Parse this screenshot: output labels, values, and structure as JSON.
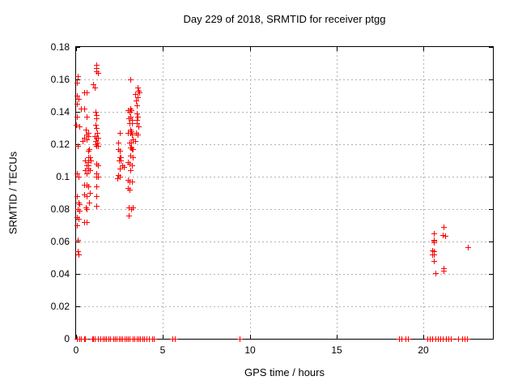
{
  "title": "Day 229 of 2018, SRMTID for receiver ptgg",
  "chart_data": {
    "type": "scatter",
    "title": "Day 229 of 2018, SRMTID for receiver ptgg",
    "xlabel": "GPS time / hours",
    "ylabel": "SRMTID / TECUs",
    "xlim": [
      0,
      24
    ],
    "ylim": [
      0,
      0.18
    ],
    "xticks": [
      0,
      5,
      10,
      15,
      20
    ],
    "xticklabels": [
      "0",
      "5",
      "10",
      "15",
      "20"
    ],
    "yticks": [
      0,
      0.02,
      0.04,
      0.06,
      0.08,
      0.1,
      0.12,
      0.14,
      0.16,
      0.18
    ],
    "yticklabels": [
      "0",
      "0.02",
      "0.04",
      "0.06",
      "0.08",
      "0.1",
      "0.12",
      "0.14",
      "0.16",
      "0.18"
    ],
    "grid": true,
    "legend_position": "none",
    "marker": "plus",
    "marker_color": "#ff0000",
    "grid_color": "#b3b3b3",
    "series": [
      {
        "name": "SRMTID",
        "points": [
          [
            0.03,
            0.132
          ],
          [
            0.08,
            0.158
          ],
          [
            0.08,
            0.15
          ],
          [
            0.08,
            0.145
          ],
          [
            0.08,
            0.137
          ],
          [
            0.11,
            0.162
          ],
          [
            0.15,
            0.148
          ],
          [
            0.19,
            0.131
          ],
          [
            0.29,
            0.142
          ],
          [
            0.39,
            0.122
          ],
          [
            0.11,
            0.119
          ],
          [
            0.08,
            0.102
          ],
          [
            0.14,
            0.1
          ],
          [
            0.14,
            0.084
          ],
          [
            0.23,
            0.083
          ],
          [
            0.11,
            0.08
          ],
          [
            0.19,
            0.079
          ],
          [
            0.08,
            0.088
          ],
          [
            0.08,
            0.075
          ],
          [
            0.17,
            0.074
          ],
          [
            0.08,
            0.07
          ],
          [
            0.11,
            0.061
          ],
          [
            0.11,
            0.054
          ],
          [
            0.17,
            0.052
          ],
          [
            0.5,
            0.152
          ],
          [
            0.62,
            0.152
          ],
          [
            0.5,
            0.142
          ],
          [
            0.65,
            0.137
          ],
          [
            0.58,
            0.129
          ],
          [
            0.7,
            0.127
          ],
          [
            0.61,
            0.126
          ],
          [
            0.73,
            0.125
          ],
          [
            0.5,
            0.124
          ],
          [
            0.61,
            0.123
          ],
          [
            0.78,
            0.117
          ],
          [
            0.7,
            0.116
          ],
          [
            0.73,
            0.112
          ],
          [
            0.81,
            0.112
          ],
          [
            0.73,
            0.11
          ],
          [
            0.84,
            0.11
          ],
          [
            0.55,
            0.11
          ],
          [
            0.7,
            0.109
          ],
          [
            0.61,
            0.107
          ],
          [
            0.73,
            0.107
          ],
          [
            0.73,
            0.105
          ],
          [
            0.81,
            0.104
          ],
          [
            0.55,
            0.104
          ],
          [
            0.7,
            0.104
          ],
          [
            0.65,
            0.102
          ],
          [
            0.5,
            0.095
          ],
          [
            0.61,
            0.095
          ],
          [
            0.73,
            0.094
          ],
          [
            0.5,
            0.089
          ],
          [
            0.61,
            0.088
          ],
          [
            0.81,
            0.09
          ],
          [
            0.57,
            0.081
          ],
          [
            0.65,
            0.08
          ],
          [
            0.78,
            0.084
          ],
          [
            0.5,
            0.072
          ],
          [
            0.65,
            0.072
          ],
          [
            1.18,
            0.169
          ],
          [
            1.2,
            0.167
          ],
          [
            1.17,
            0.165
          ],
          [
            1.27,
            0.164
          ],
          [
            1.01,
            0.157
          ],
          [
            1.09,
            0.155
          ],
          [
            1.12,
            0.14
          ],
          [
            1.2,
            0.138
          ],
          [
            1.17,
            0.136
          ],
          [
            1.12,
            0.132
          ],
          [
            1.17,
            0.13
          ],
          [
            1.24,
            0.127
          ],
          [
            1.09,
            0.125
          ],
          [
            1.2,
            0.124
          ],
          [
            1.27,
            0.124
          ],
          [
            1.16,
            0.122
          ],
          [
            1.24,
            0.121
          ],
          [
            1.16,
            0.12
          ],
          [
            1.27,
            0.119
          ],
          [
            1.17,
            0.119
          ],
          [
            1.2,
            0.108
          ],
          [
            1.27,
            0.107
          ],
          [
            1.2,
            0.102
          ],
          [
            1.17,
            0.1
          ],
          [
            1.27,
            0.1
          ],
          [
            1.2,
            0.094
          ],
          [
            1.2,
            0.088
          ],
          [
            1.2,
            0.082
          ],
          [
            2.44,
            0.121
          ],
          [
            2.52,
            0.127
          ],
          [
            2.44,
            0.117
          ],
          [
            2.56,
            0.116
          ],
          [
            2.52,
            0.112
          ],
          [
            2.6,
            0.112
          ],
          [
            2.49,
            0.11
          ],
          [
            2.6,
            0.11
          ],
          [
            2.68,
            0.107
          ],
          [
            2.76,
            0.106
          ],
          [
            2.52,
            0.105
          ],
          [
            2.44,
            0.101
          ],
          [
            2.52,
            0.1
          ],
          [
            2.4,
            0.099
          ],
          [
            3.13,
            0.16
          ],
          [
            3.55,
            0.155
          ],
          [
            3.61,
            0.153
          ],
          [
            3.66,
            0.152
          ],
          [
            3.43,
            0.151
          ],
          [
            3.57,
            0.149
          ],
          [
            3.47,
            0.147
          ],
          [
            3.5,
            0.144
          ],
          [
            3.13,
            0.142
          ],
          [
            3.02,
            0.141
          ],
          [
            3.12,
            0.14
          ],
          [
            3.21,
            0.141
          ],
          [
            3.54,
            0.139
          ],
          [
            3.15,
            0.137
          ],
          [
            3.07,
            0.136
          ],
          [
            3.58,
            0.137
          ],
          [
            3.54,
            0.135
          ],
          [
            3.24,
            0.135
          ],
          [
            3.12,
            0.133
          ],
          [
            3.22,
            0.133
          ],
          [
            3.5,
            0.133
          ],
          [
            3.61,
            0.131
          ],
          [
            3.13,
            0.129
          ],
          [
            3.21,
            0.128
          ],
          [
            3.02,
            0.127
          ],
          [
            3.14,
            0.127
          ],
          [
            3.47,
            0.127
          ],
          [
            3.58,
            0.126
          ],
          [
            3.22,
            0.126
          ],
          [
            3.3,
            0.123
          ],
          [
            3.43,
            0.122
          ],
          [
            3.12,
            0.121
          ],
          [
            3.19,
            0.121
          ],
          [
            3.13,
            0.118
          ],
          [
            3.18,
            0.118
          ],
          [
            3.27,
            0.117
          ],
          [
            3.24,
            0.117
          ],
          [
            3.13,
            0.113
          ],
          [
            3.27,
            0.112
          ],
          [
            3.02,
            0.109
          ],
          [
            3.12,
            0.108
          ],
          [
            3.22,
            0.107
          ],
          [
            3.13,
            0.104
          ],
          [
            2.99,
            0.098
          ],
          [
            3.12,
            0.097
          ],
          [
            3.22,
            0.097
          ],
          [
            3.02,
            0.093
          ],
          [
            3.12,
            0.092
          ],
          [
            3.07,
            0.081
          ],
          [
            3.18,
            0.08
          ],
          [
            3.27,
            0.081
          ],
          [
            3.07,
            0.076
          ],
          [
            21.2,
            0.069
          ],
          [
            20.6,
            0.065
          ],
          [
            21.15,
            0.064
          ],
          [
            21.26,
            0.0635
          ],
          [
            20.6,
            0.061
          ],
          [
            20.64,
            0.0605
          ],
          [
            20.6,
            0.0595
          ],
          [
            22.6,
            0.0565
          ],
          [
            20.53,
            0.0545
          ],
          [
            20.64,
            0.054
          ],
          [
            20.53,
            0.052
          ],
          [
            20.64,
            0.052
          ],
          [
            20.6,
            0.048
          ],
          [
            21.2,
            0.0435
          ],
          [
            21.2,
            0.042
          ],
          [
            20.7,
            0.0405
          ],
          [
            0.05,
            0
          ],
          [
            0.2,
            0
          ],
          [
            0.3,
            0
          ],
          [
            0.5,
            0
          ],
          [
            0.55,
            0
          ],
          [
            0.95,
            0
          ],
          [
            1.0,
            0
          ],
          [
            1.1,
            0
          ],
          [
            1.3,
            0
          ],
          [
            1.4,
            0
          ],
          [
            1.55,
            0
          ],
          [
            1.65,
            0
          ],
          [
            1.75,
            0
          ],
          [
            1.9,
            0
          ],
          [
            2.0,
            0
          ],
          [
            2.15,
            0
          ],
          [
            2.25,
            0
          ],
          [
            2.35,
            0
          ],
          [
            2.5,
            0
          ],
          [
            2.6,
            0
          ],
          [
            2.7,
            0
          ],
          [
            2.8,
            0
          ],
          [
            2.9,
            0
          ],
          [
            3.0,
            0
          ],
          [
            3.1,
            0
          ],
          [
            3.3,
            0
          ],
          [
            3.4,
            0
          ],
          [
            3.5,
            0
          ],
          [
            3.6,
            0
          ],
          [
            3.7,
            0
          ],
          [
            3.85,
            0
          ],
          [
            3.95,
            0
          ],
          [
            4.1,
            0
          ],
          [
            4.2,
            0
          ],
          [
            4.4,
            0
          ],
          [
            4.5,
            0
          ],
          [
            5.55,
            0
          ],
          [
            5.7,
            0
          ],
          [
            9.45,
            0
          ],
          [
            18.6,
            0
          ],
          [
            18.75,
            0
          ],
          [
            19.0,
            0
          ],
          [
            19.15,
            0
          ],
          [
            20.25,
            0
          ],
          [
            20.4,
            0
          ],
          [
            20.55,
            0
          ],
          [
            20.7,
            0
          ],
          [
            20.85,
            0
          ],
          [
            21.0,
            0
          ],
          [
            21.15,
            0
          ],
          [
            21.3,
            0
          ],
          [
            21.45,
            0
          ],
          [
            21.6,
            0
          ],
          [
            22.0,
            0
          ],
          [
            22.25,
            0
          ],
          [
            22.4,
            0
          ],
          [
            22.55,
            0
          ]
        ]
      }
    ]
  }
}
